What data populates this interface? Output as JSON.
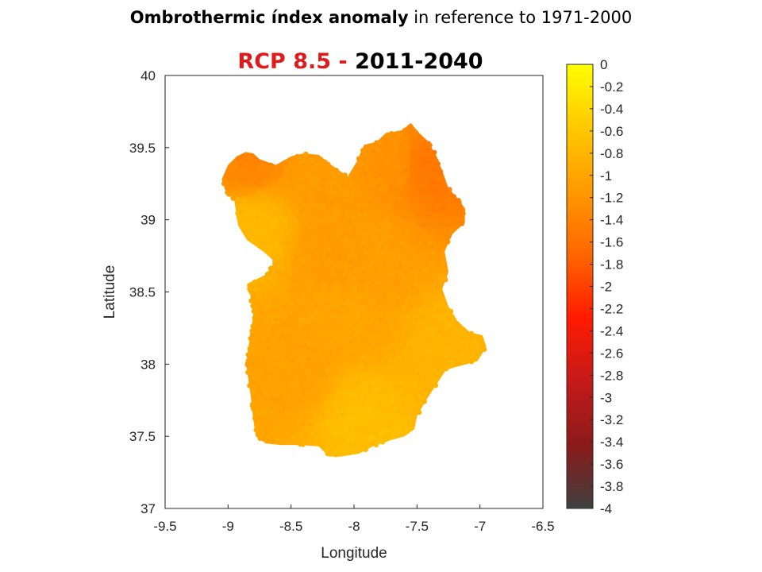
{
  "title": {
    "bold": "Ombrothermic índex anomaly",
    "rest": " in reference to 1971-2000"
  },
  "subtitle": {
    "scenario": "RCP 8.5",
    "separator": " -  ",
    "period": "2011-2040"
  },
  "colors": {
    "scenario_text": "#e01b1b",
    "colormap": [
      "#404040",
      "#8b1a1a",
      "#c41a1a",
      "#ff1a00",
      "#ff6600",
      "#ff9900",
      "#ffc800",
      "#ffff00"
    ]
  },
  "chart_data": {
    "type": "scatter",
    "xlabel": "Longitude",
    "ylabel": "Latitude",
    "xlim": [
      -9.5,
      -6.5
    ],
    "ylim": [
      37,
      40
    ],
    "xticks": [
      "-9.5",
      "-9",
      "-8.5",
      "-8",
      "-7.5",
      "-7",
      "-6.5"
    ],
    "yticks": [
      "37",
      "37.5",
      "38",
      "38.5",
      "39",
      "39.5",
      "40"
    ],
    "colorbar": {
      "range": [
        -4,
        0
      ],
      "ticks": [
        "0",
        "-0.2",
        "-0.4",
        "-0.6",
        "-0.8",
        "-1",
        "-1.2",
        "-1.4",
        "-1.6",
        "-1.8",
        "-2",
        "-2.2",
        "-2.4",
        "-2.6",
        "-2.8",
        "-3",
        "-3.2",
        "-3.4",
        "-3.6",
        "-3.8",
        "-4"
      ]
    },
    "region_outline": [
      [
        -8.86,
        39.47
      ],
      [
        -8.8,
        39.46
      ],
      [
        -8.75,
        39.42
      ],
      [
        -8.62,
        39.38
      ],
      [
        -8.5,
        39.44
      ],
      [
        -8.4,
        39.46
      ],
      [
        -8.28,
        39.45
      ],
      [
        -8.18,
        39.38
      ],
      [
        -8.05,
        39.3
      ],
      [
        -7.98,
        39.4
      ],
      [
        -7.92,
        39.52
      ],
      [
        -7.82,
        39.54
      ],
      [
        -7.75,
        39.6
      ],
      [
        -7.62,
        39.62
      ],
      [
        -7.55,
        39.67
      ],
      [
        -7.48,
        39.6
      ],
      [
        -7.42,
        39.55
      ],
      [
        -7.35,
        39.45
      ],
      [
        -7.3,
        39.34
      ],
      [
        -7.25,
        39.22
      ],
      [
        -7.18,
        39.15
      ],
      [
        -7.12,
        39.08
      ],
      [
        -7.12,
        38.98
      ],
      [
        -7.22,
        38.9
      ],
      [
        -7.28,
        38.78
      ],
      [
        -7.25,
        38.64
      ],
      [
        -7.3,
        38.52
      ],
      [
        -7.25,
        38.4
      ],
      [
        -7.18,
        38.3
      ],
      [
        -7.08,
        38.22
      ],
      [
        -6.98,
        38.2
      ],
      [
        -6.95,
        38.12
      ],
      [
        -7.02,
        38.02
      ],
      [
        -7.15,
        37.99
      ],
      [
        -7.27,
        37.96
      ],
      [
        -7.33,
        37.88
      ],
      [
        -7.42,
        37.76
      ],
      [
        -7.5,
        37.64
      ],
      [
        -7.52,
        37.55
      ],
      [
        -7.6,
        37.5
      ],
      [
        -7.72,
        37.47
      ],
      [
        -7.85,
        37.43
      ],
      [
        -7.96,
        37.38
      ],
      [
        -8.1,
        37.36
      ],
      [
        -8.2,
        37.36
      ],
      [
        -8.28,
        37.43
      ],
      [
        -8.42,
        37.44
      ],
      [
        -8.58,
        37.44
      ],
      [
        -8.7,
        37.45
      ],
      [
        -8.78,
        37.5
      ],
      [
        -8.8,
        37.62
      ],
      [
        -8.82,
        37.78
      ],
      [
        -8.85,
        37.96
      ],
      [
        -8.85,
        38.05
      ],
      [
        -8.82,
        38.22
      ],
      [
        -8.8,
        38.34
      ],
      [
        -8.82,
        38.46
      ],
      [
        -8.84,
        38.56
      ],
      [
        -8.7,
        38.62
      ],
      [
        -8.63,
        38.71
      ],
      [
        -8.72,
        38.78
      ],
      [
        -8.85,
        38.86
      ],
      [
        -8.92,
        38.96
      ],
      [
        -8.93,
        39.02
      ],
      [
        -8.95,
        39.13
      ],
      [
        -9.02,
        39.2
      ],
      [
        -9.05,
        39.28
      ],
      [
        -9.0,
        39.38
      ],
      [
        -8.93,
        39.44
      ]
    ],
    "anomaly_hotspots": [
      {
        "lon": -7.4,
        "lat": 39.38,
        "value": -1.75
      },
      {
        "lon": -8.84,
        "lat": 39.42,
        "value": -1.55
      },
      {
        "lon": -7.72,
        "lat": 39.42,
        "value": -1.35
      },
      {
        "lon": -8.22,
        "lat": 39.3,
        "value": -1.2
      },
      {
        "lon": -8.15,
        "lat": 38.78,
        "value": -1.2
      },
      {
        "lon": -7.85,
        "lat": 38.72,
        "value": -1.15
      },
      {
        "lon": -8.48,
        "lat": 37.95,
        "value": -1.1
      },
      {
        "lon": -8.05,
        "lat": 38.35,
        "value": -1.05
      },
      {
        "lon": -7.95,
        "lat": 37.6,
        "value": -0.62
      },
      {
        "lon": -8.8,
        "lat": 38.95,
        "value": -0.72
      },
      {
        "lon": -7.25,
        "lat": 38.1,
        "value": -0.78
      }
    ],
    "background_anomaly": -0.9
  }
}
